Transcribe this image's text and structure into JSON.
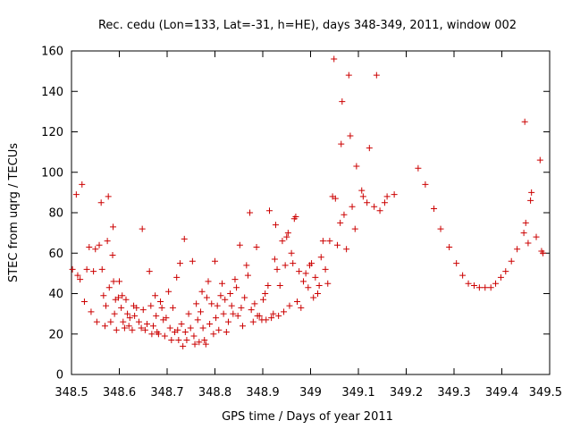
{
  "chart_data": {
    "type": "scatter",
    "title": "Rec. cedu (Lon=133, Lat=-31, h=HE), days 348-349, 2011, window 002",
    "xlabel": "GPS time / Days of year 2011",
    "ylabel": "STEC from uqrg / TECUs",
    "xlim": [
      348.5,
      349.5
    ],
    "ylim": [
      0,
      160
    ],
    "xticks": [
      348.5,
      348.6,
      348.7,
      348.8,
      348.9,
      349,
      349.1,
      349.2,
      349.3,
      349.4,
      349.5
    ],
    "xtick_labels": [
      "348.5",
      "348.6",
      "348.7",
      "348.8",
      "348.9",
      "349",
      "349.1",
      "349.2",
      "349.3",
      "349.4",
      "349.5"
    ],
    "yticks": [
      0,
      20,
      40,
      60,
      80,
      100,
      120,
      140,
      160
    ],
    "ytick_labels": [
      "0",
      "20",
      "40",
      "60",
      "80",
      "100",
      "120",
      "140",
      "160"
    ],
    "grid": false,
    "legend": "none",
    "marker": "plus",
    "color": "#cc0000",
    "points": [
      [
        348.502,
        52
      ],
      [
        348.51,
        89
      ],
      [
        348.513,
        49
      ],
      [
        348.518,
        47
      ],
      [
        348.522,
        94
      ],
      [
        348.527,
        36
      ],
      [
        348.532,
        52
      ],
      [
        348.537,
        63
      ],
      [
        348.541,
        31
      ],
      [
        348.546,
        51
      ],
      [
        348.55,
        62
      ],
      [
        348.553,
        26
      ],
      [
        348.558,
        64
      ],
      [
        348.562,
        85
      ],
      [
        348.564,
        52
      ],
      [
        348.567,
        39
      ],
      [
        348.57,
        24
      ],
      [
        348.572,
        34
      ],
      [
        348.575,
        66
      ],
      [
        348.577,
        88
      ],
      [
        348.579,
        43
      ],
      [
        348.582,
        26
      ],
      [
        348.586,
        59
      ],
      [
        348.587,
        73
      ],
      [
        348.588,
        46
      ],
      [
        348.59,
        30
      ],
      [
        348.592,
        37
      ],
      [
        348.594,
        22
      ],
      [
        348.598,
        38
      ],
      [
        348.6,
        46
      ],
      [
        348.604,
        33
      ],
      [
        348.606,
        39
      ],
      [
        348.608,
        26
      ],
      [
        348.611,
        23
      ],
      [
        348.614,
        37
      ],
      [
        348.617,
        30
      ],
      [
        348.62,
        24
      ],
      [
        348.622,
        28
      ],
      [
        348.627,
        22
      ],
      [
        348.63,
        34
      ],
      [
        348.632,
        29
      ],
      [
        348.636,
        33
      ],
      [
        348.641,
        26
      ],
      [
        348.646,
        23
      ],
      [
        348.648,
        72
      ],
      [
        348.65,
        32
      ],
      [
        348.654,
        22
      ],
      [
        348.658,
        25
      ],
      [
        348.663,
        51
      ],
      [
        348.666,
        34
      ],
      [
        348.668,
        20
      ],
      [
        348.671,
        24
      ],
      [
        348.675,
        39
      ],
      [
        348.677,
        29
      ],
      [
        348.679,
        21
      ],
      [
        348.682,
        20
      ],
      [
        348.686,
        36
      ],
      [
        348.689,
        33
      ],
      [
        348.692,
        27
      ],
      [
        348.695,
        19
      ],
      [
        348.698,
        28
      ],
      [
        348.703,
        41
      ],
      [
        348.706,
        23
      ],
      [
        348.709,
        17
      ],
      [
        348.712,
        33
      ],
      [
        348.716,
        21
      ],
      [
        348.72,
        48
      ],
      [
        348.722,
        22
      ],
      [
        348.724,
        17
      ],
      [
        348.727,
        55
      ],
      [
        348.73,
        25
      ],
      [
        348.733,
        14
      ],
      [
        348.736,
        67
      ],
      [
        348.738,
        21
      ],
      [
        348.741,
        17
      ],
      [
        348.745,
        30
      ],
      [
        348.749,
        23
      ],
      [
        348.753,
        56
      ],
      [
        348.756,
        19
      ],
      [
        348.758,
        15
      ],
      [
        348.761,
        35
      ],
      [
        348.764,
        27
      ],
      [
        348.767,
        16
      ],
      [
        348.77,
        31
      ],
      [
        348.773,
        41
      ],
      [
        348.775,
        23
      ],
      [
        348.778,
        17
      ],
      [
        348.781,
        15
      ],
      [
        348.783,
        38
      ],
      [
        348.786,
        46
      ],
      [
        348.789,
        25
      ],
      [
        348.793,
        35
      ],
      [
        348.797,
        20
      ],
      [
        348.8,
        56
      ],
      [
        348.802,
        28
      ],
      [
        348.805,
        34
      ],
      [
        348.808,
        22
      ],
      [
        348.812,
        39
      ],
      [
        348.815,
        45
      ],
      [
        348.818,
        30
      ],
      [
        348.821,
        37
      ],
      [
        348.824,
        21
      ],
      [
        348.828,
        26
      ],
      [
        348.832,
        40
      ],
      [
        348.835,
        34
      ],
      [
        348.838,
        30
      ],
      [
        348.842,
        47
      ],
      [
        348.845,
        43
      ],
      [
        348.848,
        29
      ],
      [
        348.852,
        64
      ],
      [
        348.855,
        33
      ],
      [
        348.858,
        24
      ],
      [
        348.862,
        38
      ],
      [
        348.866,
        54
      ],
      [
        348.869,
        49
      ],
      [
        348.873,
        80
      ],
      [
        348.876,
        32
      ],
      [
        348.88,
        26
      ],
      [
        348.883,
        35
      ],
      [
        348.887,
        63
      ],
      [
        348.889,
        29
      ],
      [
        348.893,
        29
      ],
      [
        348.898,
        27
      ],
      [
        348.901,
        37
      ],
      [
        348.905,
        40
      ],
      [
        348.907,
        27
      ],
      [
        348.911,
        44
      ],
      [
        348.914,
        81
      ],
      [
        348.918,
        28
      ],
      [
        348.922,
        30
      ],
      [
        348.925,
        57
      ],
      [
        348.927,
        74
      ],
      [
        348.93,
        52
      ],
      [
        348.933,
        29
      ],
      [
        348.936,
        44
      ],
      [
        348.941,
        66
      ],
      [
        348.944,
        31
      ],
      [
        348.947,
        54
      ],
      [
        348.95,
        68
      ],
      [
        348.953,
        70
      ],
      [
        348.956,
        34
      ],
      [
        348.96,
        60
      ],
      [
        348.963,
        55
      ],
      [
        348.966,
        77
      ],
      [
        348.969,
        78
      ],
      [
        348.972,
        36
      ],
      [
        348.976,
        51
      ],
      [
        348.98,
        33
      ],
      [
        348.985,
        46
      ],
      [
        348.99,
        50
      ],
      [
        348.995,
        43
      ],
      [
        348.998,
        54
      ],
      [
        349.002,
        55
      ],
      [
        349.006,
        38
      ],
      [
        349.01,
        48
      ],
      [
        349.015,
        40
      ],
      [
        349.018,
        44
      ],
      [
        349.022,
        58
      ],
      [
        349.026,
        66
      ],
      [
        349.031,
        52
      ],
      [
        349.036,
        45
      ],
      [
        349.04,
        66
      ],
      [
        349.046,
        88
      ],
      [
        349.049,
        156
      ],
      [
        349.052,
        87
      ],
      [
        349.056,
        64
      ],
      [
        349.062,
        75
      ],
      [
        349.064,
        114
      ],
      [
        349.066,
        135
      ],
      [
        349.07,
        79
      ],
      [
        349.075,
        62
      ],
      [
        349.08,
        148
      ],
      [
        349.083,
        118
      ],
      [
        349.087,
        83
      ],
      [
        349.093,
        72
      ],
      [
        349.096,
        103
      ],
      [
        349.107,
        91
      ],
      [
        349.11,
        88
      ],
      [
        349.118,
        85
      ],
      [
        349.123,
        112
      ],
      [
        349.133,
        83
      ],
      [
        349.138,
        148
      ],
      [
        349.145,
        81
      ],
      [
        349.155,
        85
      ],
      [
        349.16,
        88
      ],
      [
        349.175,
        89
      ],
      [
        349.225,
        102
      ],
      [
        349.24,
        94
      ],
      [
        349.258,
        82
      ],
      [
        349.272,
        72
      ],
      [
        349.29,
        63
      ],
      [
        349.305,
        55
      ],
      [
        349.318,
        49
      ],
      [
        349.33,
        45
      ],
      [
        349.342,
        44
      ],
      [
        349.353,
        43
      ],
      [
        349.365,
        43
      ],
      [
        349.377,
        43
      ],
      [
        349.387,
        45
      ],
      [
        349.398,
        48
      ],
      [
        349.408,
        51
      ],
      [
        349.42,
        56
      ],
      [
        349.432,
        62
      ],
      [
        349.446,
        70
      ],
      [
        349.448,
        125
      ],
      [
        349.45,
        75
      ],
      [
        349.455,
        65
      ],
      [
        349.46,
        86
      ],
      [
        349.462,
        90
      ],
      [
        349.472,
        68
      ],
      [
        349.48,
        106
      ],
      [
        349.483,
        61
      ],
      [
        349.486,
        60
      ]
    ]
  }
}
